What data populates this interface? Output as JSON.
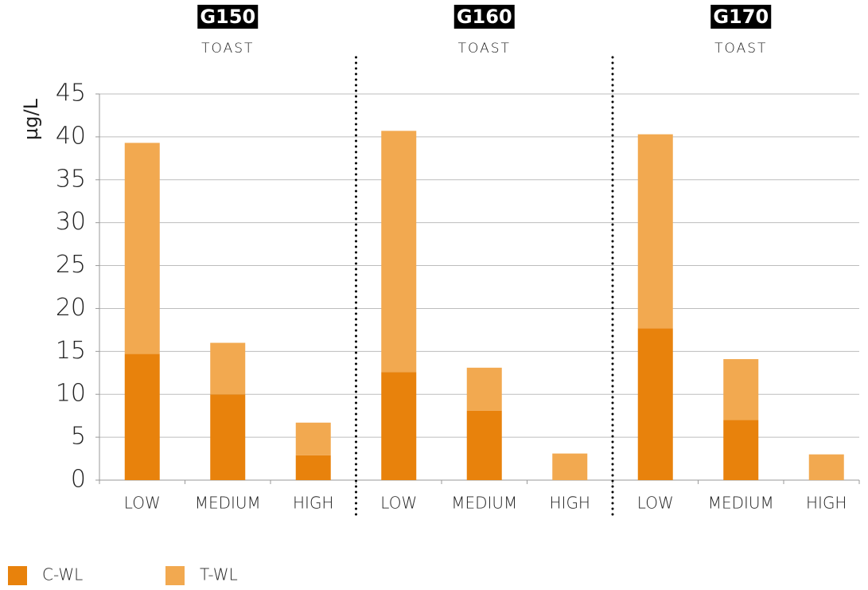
{
  "chart_data": {
    "type": "bar",
    "stacked": true,
    "ylabel": "µg/L",
    "groups": [
      {
        "name": "G150",
        "label": "TOAST"
      },
      {
        "name": "G160",
        "label": "TOAST"
      },
      {
        "name": "G170",
        "label": "TOAST"
      }
    ],
    "categories": [
      "LOW",
      "MEDIUM",
      "HIGH",
      "LOW",
      "MEDIUM",
      "HIGH",
      "LOW",
      "MEDIUM",
      "HIGH"
    ],
    "series": [
      {
        "name": "C-WL",
        "color": "#e8820c",
        "values": [
          14.7,
          10,
          2.9,
          12.6,
          8.1,
          0,
          17.7,
          7,
          0
        ]
      },
      {
        "name": "T-WL",
        "color": "#f2a950",
        "values": [
          24.6,
          6,
          3.8,
          28.1,
          5,
          3.1,
          22.6,
          7.1,
          3
        ]
      }
    ],
    "ylim": [
      0,
      45
    ],
    "yticks": [
      0,
      5,
      10,
      15,
      20,
      25,
      30,
      35,
      40,
      45
    ],
    "grid": true,
    "legend": "bottom-left"
  }
}
